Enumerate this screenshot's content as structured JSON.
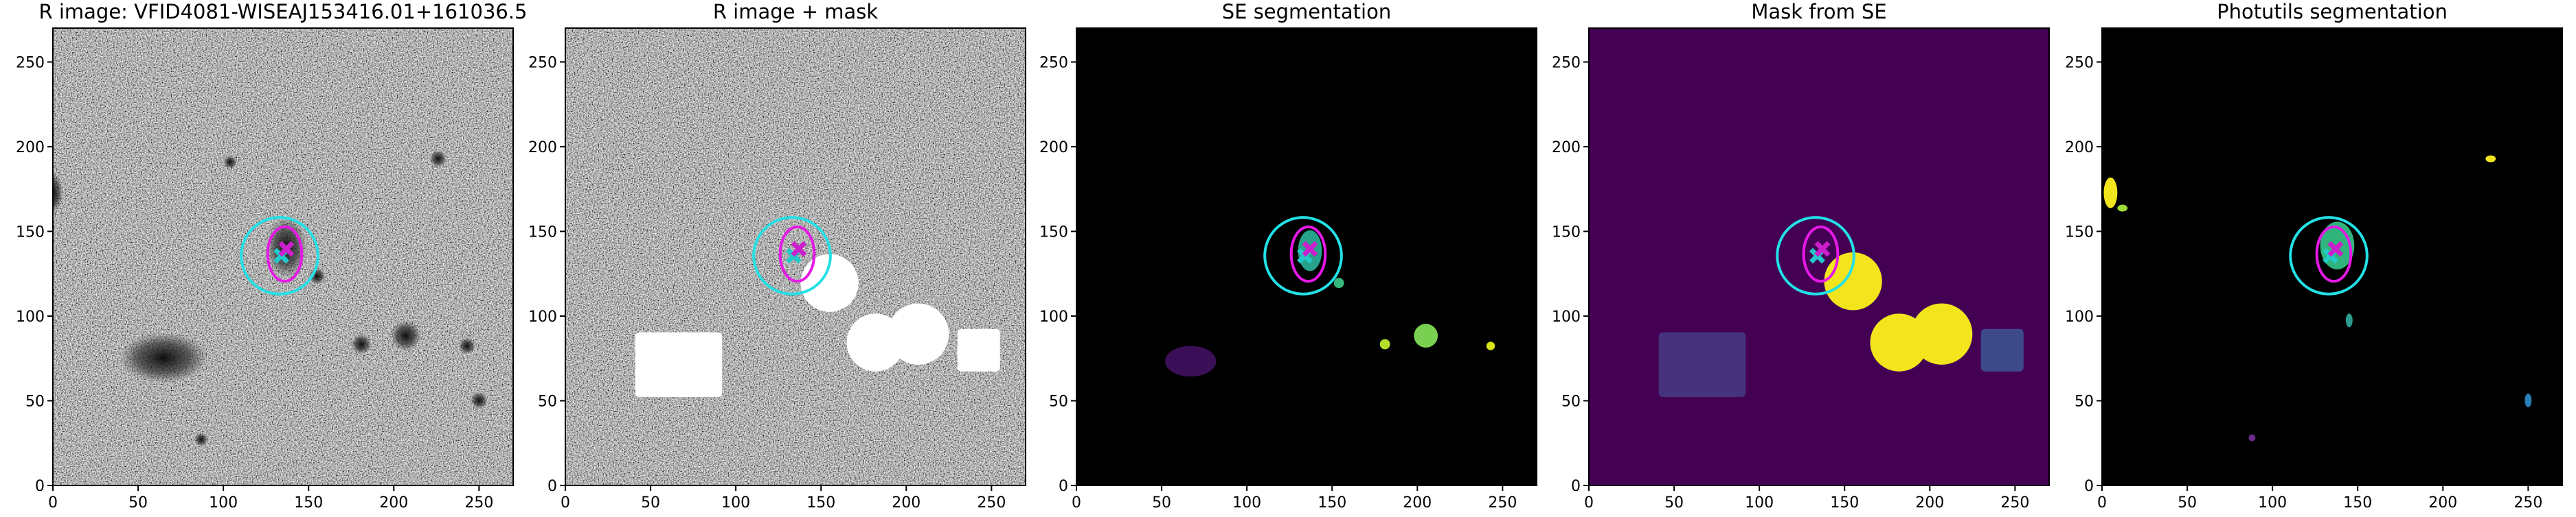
{
  "chart_data": [
    {
      "type": "image",
      "title": "R image: VFID4081-WISEAJ153416.01+161036.5",
      "xlim": [
        0,
        270
      ],
      "ylim": [
        0,
        270
      ],
      "xticks": [
        0,
        50,
        100,
        150,
        200,
        250
      ],
      "yticks": [
        0,
        50,
        100,
        150,
        200,
        250
      ]
    },
    {
      "type": "image",
      "title": "R image + mask",
      "xlim": [
        0,
        270
      ],
      "ylim": [
        0,
        270
      ],
      "xticks": [
        0,
        50,
        100,
        150,
        200,
        250
      ],
      "yticks": [
        0,
        50,
        100,
        150,
        200,
        250
      ]
    },
    {
      "type": "image",
      "title": "SE segmentation",
      "xlim": [
        0,
        270
      ],
      "ylim": [
        0,
        270
      ],
      "xticks": [
        0,
        50,
        100,
        150,
        200,
        250
      ],
      "yticks": [
        0,
        50,
        100,
        150,
        200,
        250
      ]
    },
    {
      "type": "image",
      "title": "Mask from SE",
      "xlim": [
        0,
        270
      ],
      "ylim": [
        0,
        270
      ],
      "xticks": [
        0,
        50,
        100,
        150,
        200,
        250
      ],
      "yticks": [
        0,
        50,
        100,
        150,
        200,
        250
      ]
    },
    {
      "type": "image",
      "title": "Photutils segmentation",
      "xlim": [
        0,
        270
      ],
      "ylim": [
        0,
        270
      ],
      "xticks": [
        0,
        50,
        100,
        150,
        200,
        250
      ],
      "yticks": [
        0,
        50,
        100,
        150,
        200,
        250
      ]
    }
  ]
}
